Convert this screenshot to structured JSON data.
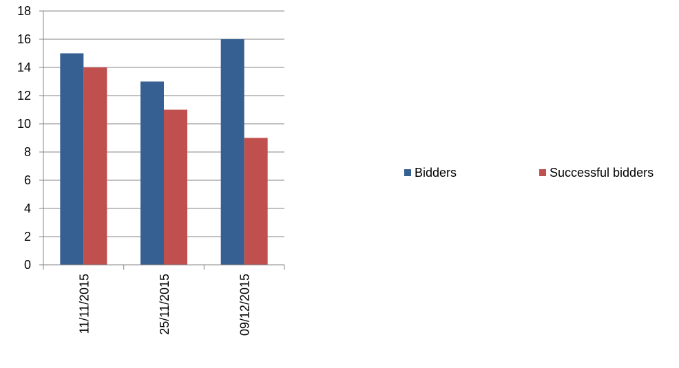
{
  "chart_data": {
    "type": "bar",
    "categories": [
      "11/11/2015",
      "25/11/2015",
      "09/12/2015"
    ],
    "series": [
      {
        "name": "Bidders",
        "values": [
          15,
          13,
          16
        ],
        "color": "#376092"
      },
      {
        "name": "Successful bidders",
        "values": [
          14,
          11,
          9
        ],
        "color": "#C0504D"
      }
    ],
    "ylim": [
      0,
      18
    ],
    "yticks": [
      0,
      2,
      4,
      6,
      8,
      10,
      12,
      14,
      16,
      18
    ],
    "grid": true,
    "legend_position": "right"
  }
}
